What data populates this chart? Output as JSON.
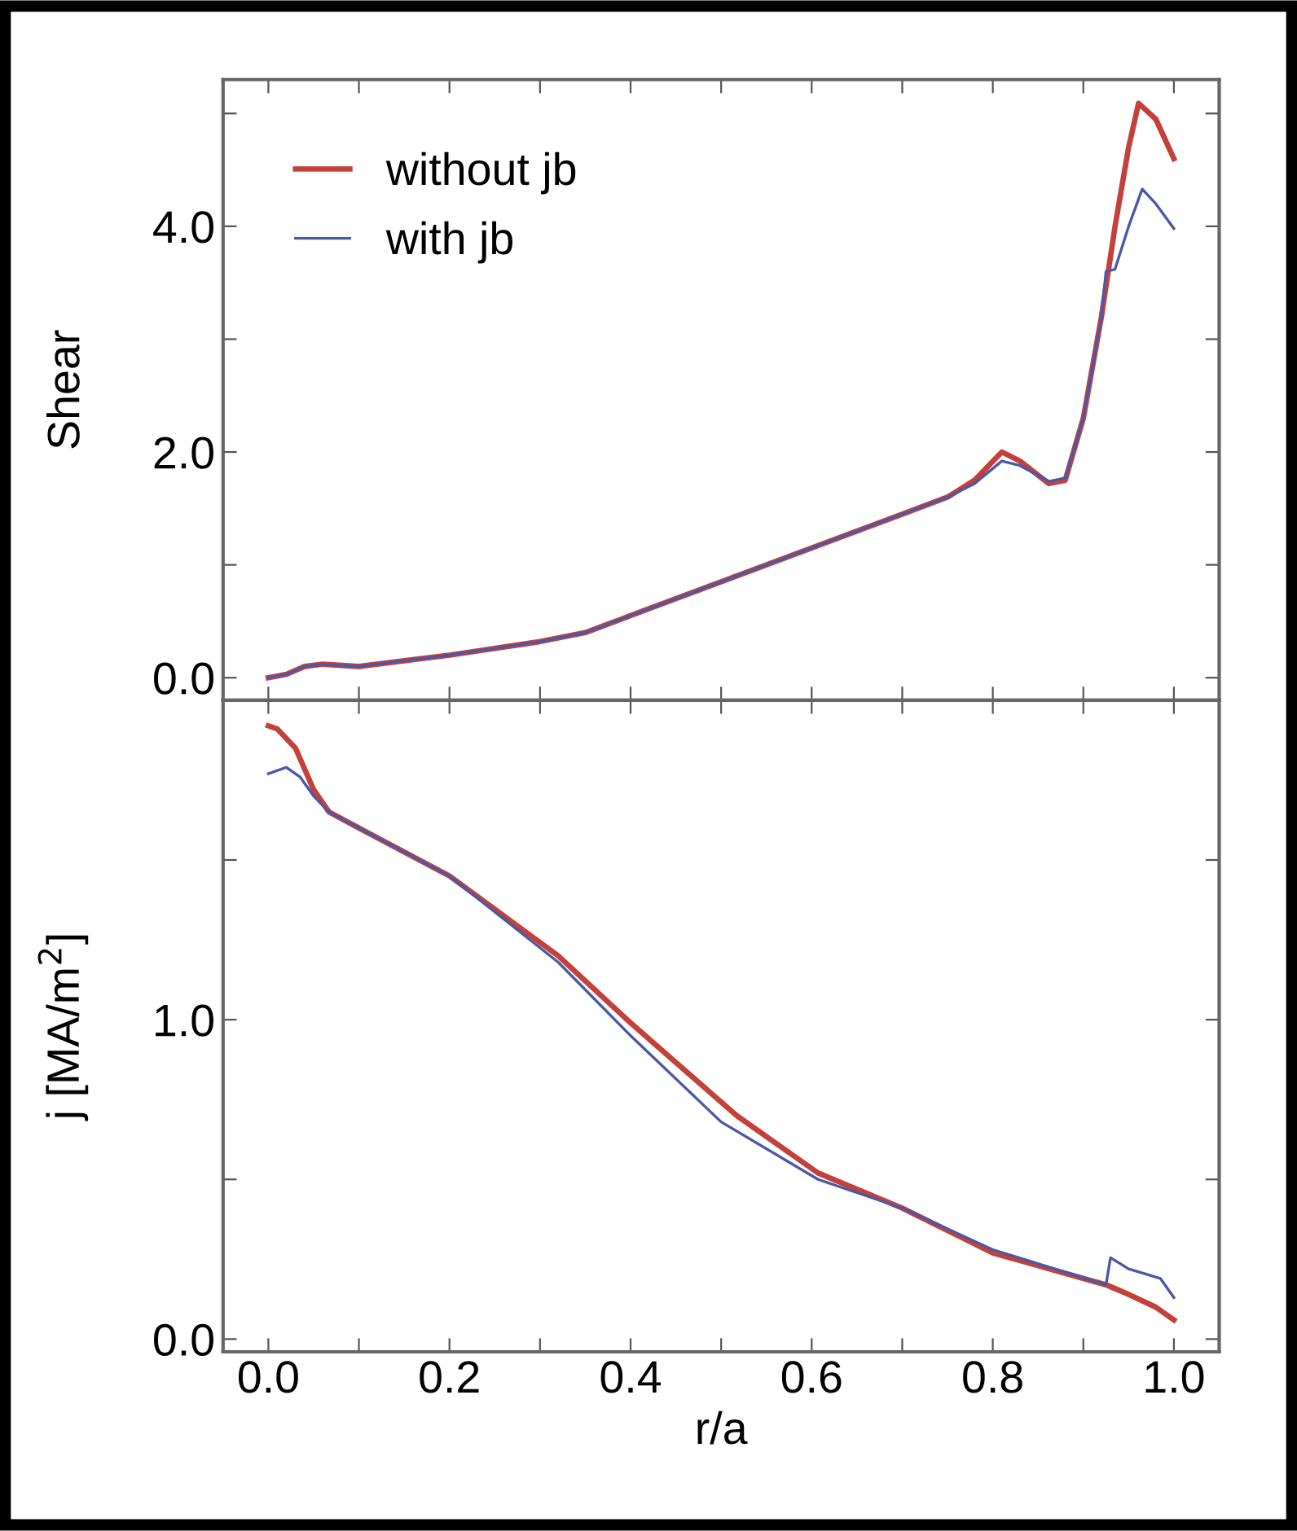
{
  "chart_data": [
    {
      "type": "line",
      "ylabel": "Shear",
      "xlim": [
        -0.05,
        1.05
      ],
      "ylim": [
        -0.2,
        5.3
      ],
      "xticks": [
        {
          "value": 0,
          "label": null
        },
        {
          "value": 0.1,
          "label": null
        },
        {
          "value": 0.2,
          "label": null
        },
        {
          "value": 0.3,
          "label": null
        },
        {
          "value": 0.4,
          "label": null
        },
        {
          "value": 0.5,
          "label": null
        },
        {
          "value": 0.6,
          "label": null
        },
        {
          "value": 0.7,
          "label": null
        },
        {
          "value": 0.8,
          "label": null
        },
        {
          "value": 0.9,
          "label": null
        },
        {
          "value": 1.0,
          "label": null
        }
      ],
      "yticks": [
        {
          "value": 0,
          "label": "0.0"
        },
        {
          "value": 1,
          "label": null
        },
        {
          "value": 2,
          "label": "2.0"
        },
        {
          "value": 3,
          "label": null
        },
        {
          "value": 4,
          "label": "4.0"
        },
        {
          "value": 5,
          "label": null
        }
      ],
      "tick_labels": "y",
      "legend": "top left",
      "grid": false,
      "series": [
        {
          "name": "without jb",
          "color": "#c4403a",
          "x": [
            0,
            0.02,
            0.04,
            0.06,
            0.1,
            0.2,
            0.3,
            0.35,
            0.4,
            0.5,
            0.6,
            0.7,
            0.75,
            0.78,
            0.81,
            0.83,
            0.862,
            0.88,
            0.9,
            0.92,
            0.935,
            0.95,
            0.961,
            0.98,
            1.0
          ],
          "values": [
            0.0,
            0.03,
            0.1,
            0.12,
            0.1,
            0.2,
            0.32,
            0.4,
            0.55,
            0.85,
            1.15,
            1.45,
            1.6,
            1.75,
            2.0,
            1.92,
            1.72,
            1.75,
            2.3,
            3.2,
            4.0,
            4.7,
            5.09,
            4.95,
            4.6
          ]
        },
        {
          "name": "with jb",
          "color": "#4a58a8",
          "x": [
            0,
            0.02,
            0.04,
            0.06,
            0.1,
            0.2,
            0.3,
            0.35,
            0.4,
            0.5,
            0.6,
            0.7,
            0.75,
            0.78,
            0.81,
            0.83,
            0.862,
            0.88,
            0.9,
            0.92,
            0.925,
            0.935,
            0.95,
            0.965,
            0.98,
            1.0
          ],
          "values": [
            0.0,
            0.03,
            0.1,
            0.12,
            0.1,
            0.2,
            0.32,
            0.4,
            0.55,
            0.85,
            1.15,
            1.45,
            1.6,
            1.72,
            1.92,
            1.88,
            1.74,
            1.77,
            2.3,
            3.2,
            3.6,
            3.62,
            4.0,
            4.33,
            4.2,
            3.98
          ]
        }
      ]
    },
    {
      "type": "line",
      "xlabel": "r/a",
      "ylabel": "j [MA/m$^{2}$]",
      "xlim": [
        -0.05,
        1.05
      ],
      "ylim": [
        -0.04,
        2.0
      ],
      "xticks": [
        {
          "value": 0,
          "label": "0.0"
        },
        {
          "value": 0.1,
          "label": null
        },
        {
          "value": 0.2,
          "label": "0.2"
        },
        {
          "value": 0.3,
          "label": null
        },
        {
          "value": 0.4,
          "label": "0.4"
        },
        {
          "value": 0.5,
          "label": null
        },
        {
          "value": 0.6,
          "label": "0.6"
        },
        {
          "value": 0.7,
          "label": null
        },
        {
          "value": 0.8,
          "label": "0.8"
        },
        {
          "value": 0.9,
          "label": null
        },
        {
          "value": 1.0,
          "label": "1.0"
        }
      ],
      "yticks": [
        {
          "value": 0,
          "label": "0.0"
        },
        {
          "value": 0.5,
          "label": null
        },
        {
          "value": 1,
          "label": "1.0"
        },
        {
          "value": 1.5,
          "label": null
        }
      ],
      "grid": false,
      "series": [
        {
          "color": "#c4403a",
          "x": [
            0,
            0.01,
            0.03,
            0.05,
            0.067,
            0.1,
            0.2,
            0.32,
            0.4,
            0.517,
            0.607,
            0.7,
            0.8,
            0.925,
            0.95,
            0.98,
            1.0
          ],
          "values": [
            1.92,
            1.91,
            1.85,
            1.72,
            1.65,
            1.6,
            1.45,
            1.2,
            0.99,
            0.7,
            0.52,
            0.41,
            0.27,
            0.17,
            0.14,
            0.1,
            0.06
          ]
        },
        {
          "color": "#4a58a8",
          "x": [
            0,
            0.01,
            0.02,
            0.035,
            0.05,
            0.067,
            0.1,
            0.2,
            0.32,
            0.4,
            0.5,
            0.607,
            0.7,
            0.8,
            0.925,
            0.93,
            0.95,
            0.985,
            1.0
          ],
          "values": [
            1.77,
            1.78,
            1.79,
            1.76,
            1.7,
            1.65,
            1.6,
            1.45,
            1.18,
            0.95,
            0.68,
            0.5,
            0.41,
            0.28,
            0.17,
            0.255,
            0.22,
            0.19,
            0.13
          ]
        }
      ]
    }
  ]
}
